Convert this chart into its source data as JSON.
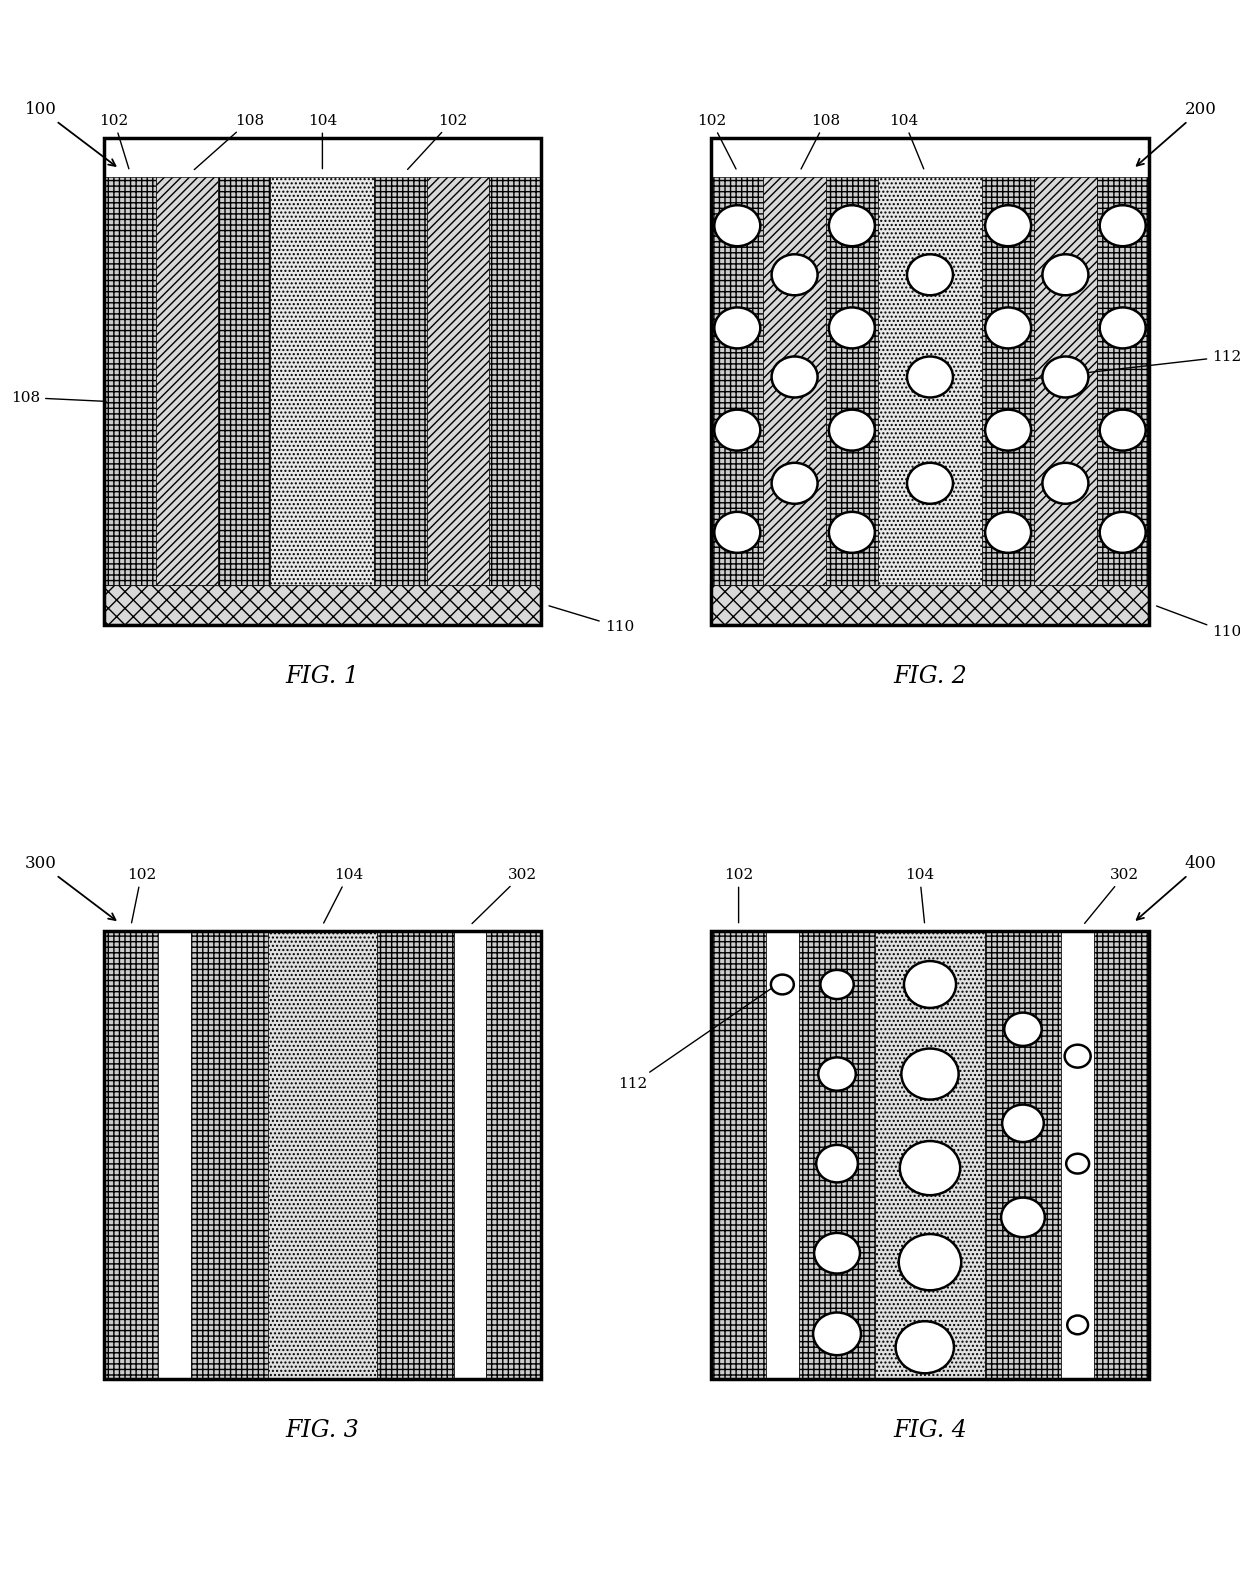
{
  "fig_width": 12.4,
  "fig_height": 15.71,
  "background": "#ffffff",
  "black": "#000000",
  "white": "#ffffff",
  "dense_hatch_color": "#c8c8c8",
  "diag_hatch_color": "#d8d8d8",
  "center_color": "#e8e8e8",
  "sub_color": "#d0d0d0",
  "fig1": {
    "col_widths": [
      1.0,
      1.2,
      1.0,
      2.0,
      1.0,
      1.2,
      1.0
    ],
    "col_hatches": [
      "+++",
      "////",
      "+++",
      "....",
      "+++",
      "////",
      "+++"
    ],
    "col_facecolors": [
      "#cccccc",
      "#d8d8d8",
      "#cccccc",
      "#e8e8e8",
      "#cccccc",
      "#d8d8d8",
      "#cccccc"
    ],
    "sub_hatch": "xx",
    "sub_facecolor": "#d8d8d8"
  },
  "fig2": {
    "col_widths": [
      1.0,
      1.2,
      1.0,
      2.0,
      1.0,
      1.2,
      1.0
    ],
    "col_hatches": [
      "+++",
      "////",
      "+++",
      "....",
      "+++",
      "////",
      "+++"
    ],
    "col_facecolors": [
      "#cccccc",
      "#d8d8d8",
      "#cccccc",
      "#e8e8e8",
      "#cccccc",
      "#d8d8d8",
      "#cccccc"
    ],
    "sub_hatch": "xx",
    "sub_facecolor": "#d8d8d8"
  },
  "fig3": {
    "col_widths": [
      1.0,
      0.6,
      1.4,
      2.0,
      1.4,
      0.6,
      1.0
    ],
    "col_hatches": [
      "+++",
      "",
      "+++",
      "....",
      "+++",
      "",
      "+++"
    ],
    "col_facecolors": [
      "#cccccc",
      "#ffffff",
      "#cccccc",
      "#e0e0e0",
      "#cccccc",
      "#ffffff",
      "#cccccc"
    ]
  },
  "fig4": {
    "col_widths": [
      1.0,
      0.6,
      1.4,
      2.0,
      1.4,
      0.6,
      1.0
    ],
    "col_hatches": [
      "+++",
      "",
      "+++",
      "....",
      "+++",
      "",
      "+++"
    ],
    "col_facecolors": [
      "#cccccc",
      "#ffffff",
      "#cccccc",
      "#e0e0e0",
      "#cccccc",
      "#ffffff",
      "#cccccc"
    ]
  }
}
